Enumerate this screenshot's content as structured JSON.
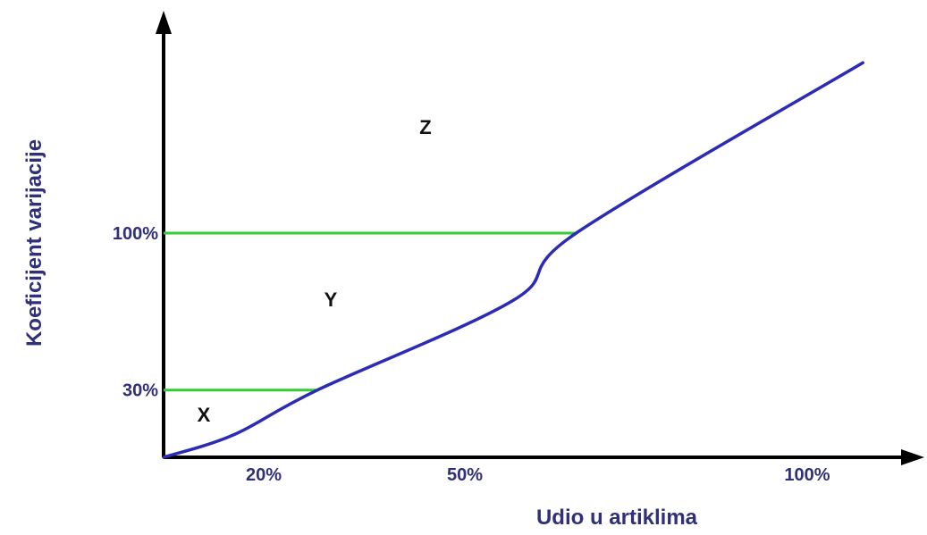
{
  "chart_data": {
    "type": "line",
    "xlabel": "Udio u artiklima",
    "ylabel": "Koeficijent varijacije",
    "x_ticks": [
      "20%",
      "50%",
      "100%"
    ],
    "y_ticks": [
      "30%",
      "100%"
    ],
    "regions": [
      "X",
      "Y",
      "Z"
    ],
    "series": [
      {
        "x": [
          0,
          10,
          22,
          50,
          59,
          100
        ],
        "y": [
          0,
          10,
          30,
          70,
          100,
          176
        ],
        "color": "#2b2bb5"
      }
    ],
    "thresholds": [
      {
        "label": "30%",
        "y": 30,
        "x_end": 22,
        "color": "#33cc33"
      },
      {
        "label": "100%",
        "y": 100,
        "x_end": 59,
        "color": "#33cc33"
      }
    ],
    "xlim": [
      0,
      107
    ],
    "ylim": [
      0,
      200
    ],
    "grid": false,
    "axis_color": "#000000",
    "label_color": "#2f2f7a"
  }
}
